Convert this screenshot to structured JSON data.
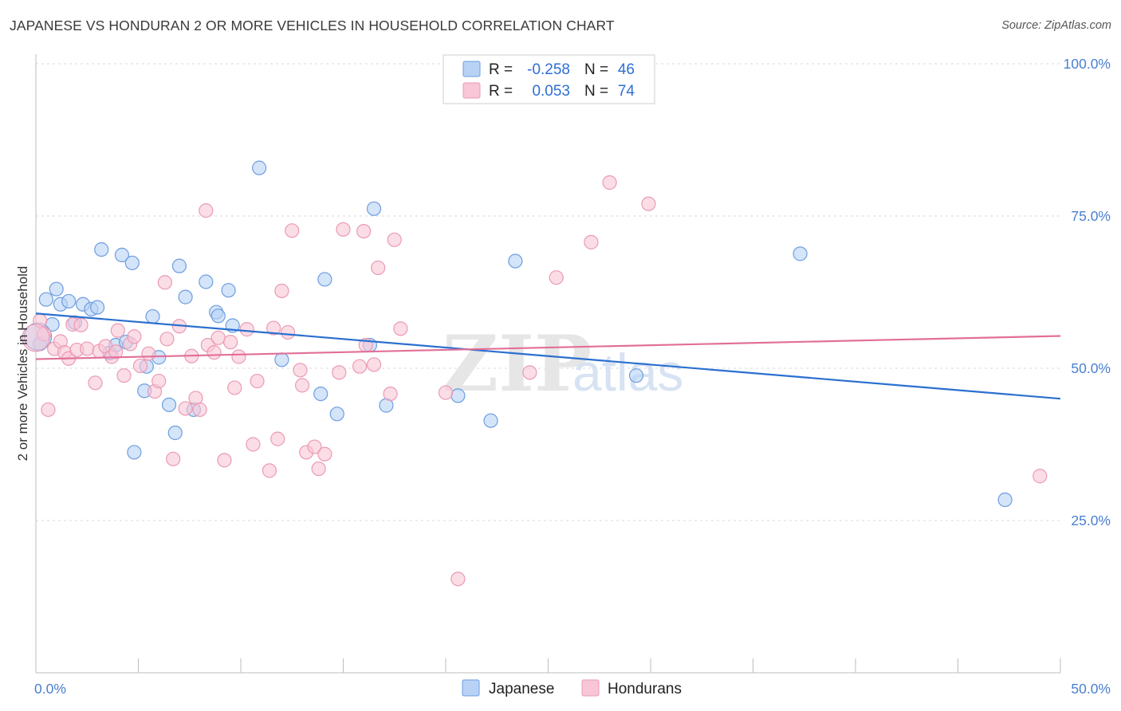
{
  "header": {
    "title": "JAPANESE VS HONDURAN 2 OR MORE VEHICLES IN HOUSEHOLD CORRELATION CHART",
    "source": "Source: ZipAtlas.com"
  },
  "legend_top": {
    "rows": [
      {
        "r_label": "R =",
        "r_value": "-0.258",
        "n_label": "N =",
        "n_value": "46"
      },
      {
        "r_label": "R =",
        "r_value": "0.053",
        "n_label": "N =",
        "n_value": "74"
      }
    ]
  },
  "legend_bottom": {
    "items": [
      {
        "label": "Japanese"
      },
      {
        "label": "Hondurans"
      }
    ]
  },
  "watermark": {
    "zip": "ZIP",
    "atlas": "atlas"
  },
  "colors": {
    "japanese_fill": "#b8d2f5",
    "japanese_stroke": "#6d9ee0",
    "japanese_line": "#2b6fd0",
    "hondurans_fill": "#f8c6d6",
    "hondurans_stroke": "#eb9ab4",
    "hondurans_line": "#e26f97",
    "axis_text": "#4a7fd0",
    "grid": "#d9d9d9"
  },
  "chart_data": {
    "type": "scatter",
    "title": "JAPANESE VS HONDURAN 2 OR MORE VEHICLES IN HOUSEHOLD CORRELATION CHART",
    "xlabel": "",
    "ylabel": "2 or more Vehicles in Household",
    "xlim": [
      0,
      50
    ],
    "ylim": [
      0,
      100
    ],
    "x_tick_labels": [
      "0.0%",
      "50.0%"
    ],
    "y_tick_labels": [
      "100.0%",
      "75.0%",
      "50.0%",
      "25.0%"
    ],
    "y_ticks": [
      100,
      75,
      50,
      25
    ],
    "grid": true,
    "legend_placement": "top-center",
    "series": [
      {
        "name": "Japanese",
        "R": -0.258,
        "N": 46,
        "trend": {
          "x": [
            0,
            50
          ],
          "y": [
            59.0,
            45.0
          ]
        },
        "points": [
          {
            "x": 0.2,
            "y": 54.0
          },
          {
            "x": 0.5,
            "y": 61.3
          },
          {
            "x": 0.8,
            "y": 57.2
          },
          {
            "x": 1.0,
            "y": 63.0
          },
          {
            "x": 1.2,
            "y": 60.5
          },
          {
            "x": 1.6,
            "y": 61.0
          },
          {
            "x": 1.9,
            "y": 57.5
          },
          {
            "x": 2.3,
            "y": 60.5
          },
          {
            "x": 2.7,
            "y": 59.7
          },
          {
            "x": 3.0,
            "y": 60.0
          },
          {
            "x": 3.2,
            "y": 69.5
          },
          {
            "x": 3.6,
            "y": 52.5
          },
          {
            "x": 3.9,
            "y": 53.8
          },
          {
            "x": 4.2,
            "y": 68.6
          },
          {
            "x": 4.4,
            "y": 54.3
          },
          {
            "x": 4.7,
            "y": 67.3
          },
          {
            "x": 4.8,
            "y": 36.2
          },
          {
            "x": 5.3,
            "y": 46.3
          },
          {
            "x": 5.4,
            "y": 50.3
          },
          {
            "x": 5.7,
            "y": 58.5
          },
          {
            "x": 6.0,
            "y": 51.8
          },
          {
            "x": 6.5,
            "y": 44.0
          },
          {
            "x": 6.8,
            "y": 39.4
          },
          {
            "x": 7.0,
            "y": 66.8
          },
          {
            "x": 7.3,
            "y": 61.7
          },
          {
            "x": 7.7,
            "y": 43.2
          },
          {
            "x": 8.3,
            "y": 64.2
          },
          {
            "x": 8.8,
            "y": 59.2
          },
          {
            "x": 8.9,
            "y": 58.6
          },
          {
            "x": 9.4,
            "y": 62.8
          },
          {
            "x": 9.6,
            "y": 57.0
          },
          {
            "x": 10.9,
            "y": 82.9
          },
          {
            "x": 12.0,
            "y": 51.4
          },
          {
            "x": 13.9,
            "y": 45.8
          },
          {
            "x": 14.1,
            "y": 64.6
          },
          {
            "x": 14.7,
            "y": 42.5
          },
          {
            "x": 16.3,
            "y": 53.8
          },
          {
            "x": 16.5,
            "y": 76.2
          },
          {
            "x": 17.1,
            "y": 43.9
          },
          {
            "x": 20.6,
            "y": 45.5
          },
          {
            "x": 22.2,
            "y": 41.4
          },
          {
            "x": 23.4,
            "y": 67.6
          },
          {
            "x": 29.3,
            "y": 48.8
          },
          {
            "x": 37.3,
            "y": 68.8
          },
          {
            "x": 47.3,
            "y": 28.4
          },
          {
            "x": 0.1,
            "y": 55.2
          }
        ]
      },
      {
        "name": "Hondurans",
        "R": 0.053,
        "N": 74,
        "trend": {
          "x": [
            0,
            50
          ],
          "y": [
            51.5,
            55.3
          ]
        },
        "points": [
          {
            "x": 0.2,
            "y": 57.8
          },
          {
            "x": 0.4,
            "y": 55.6
          },
          {
            "x": 0.6,
            "y": 43.2
          },
          {
            "x": 0.9,
            "y": 53.2
          },
          {
            "x": 1.2,
            "y": 54.4
          },
          {
            "x": 1.4,
            "y": 52.6
          },
          {
            "x": 1.6,
            "y": 51.6
          },
          {
            "x": 1.8,
            "y": 57.2
          },
          {
            "x": 2.0,
            "y": 53.0
          },
          {
            "x": 2.2,
            "y": 57.1
          },
          {
            "x": 2.5,
            "y": 53.2
          },
          {
            "x": 2.9,
            "y": 47.6
          },
          {
            "x": 3.1,
            "y": 52.8
          },
          {
            "x": 3.4,
            "y": 53.6
          },
          {
            "x": 3.7,
            "y": 51.9
          },
          {
            "x": 3.9,
            "y": 52.7
          },
          {
            "x": 4.0,
            "y": 56.2
          },
          {
            "x": 4.3,
            "y": 48.8
          },
          {
            "x": 4.6,
            "y": 54.0
          },
          {
            "x": 4.8,
            "y": 55.2
          },
          {
            "x": 5.1,
            "y": 50.4
          },
          {
            "x": 5.5,
            "y": 52.4
          },
          {
            "x": 5.8,
            "y": 46.2
          },
          {
            "x": 6.0,
            "y": 47.9
          },
          {
            "x": 6.3,
            "y": 64.1
          },
          {
            "x": 6.4,
            "y": 54.8
          },
          {
            "x": 6.7,
            "y": 35.1
          },
          {
            "x": 7.0,
            "y": 56.9
          },
          {
            "x": 7.3,
            "y": 43.4
          },
          {
            "x": 7.6,
            "y": 52.0
          },
          {
            "x": 7.8,
            "y": 45.1
          },
          {
            "x": 8.0,
            "y": 43.2
          },
          {
            "x": 8.3,
            "y": 75.9
          },
          {
            "x": 8.4,
            "y": 53.8
          },
          {
            "x": 8.7,
            "y": 52.6
          },
          {
            "x": 8.9,
            "y": 55.0
          },
          {
            "x": 9.2,
            "y": 34.9
          },
          {
            "x": 9.5,
            "y": 54.3
          },
          {
            "x": 9.7,
            "y": 46.8
          },
          {
            "x": 9.9,
            "y": 51.9
          },
          {
            "x": 10.3,
            "y": 56.4
          },
          {
            "x": 10.6,
            "y": 37.5
          },
          {
            "x": 10.8,
            "y": 47.9
          },
          {
            "x": 11.4,
            "y": 33.2
          },
          {
            "x": 11.6,
            "y": 56.6
          },
          {
            "x": 11.8,
            "y": 38.4
          },
          {
            "x": 12.0,
            "y": 62.7
          },
          {
            "x": 12.3,
            "y": 55.9
          },
          {
            "x": 12.5,
            "y": 72.6
          },
          {
            "x": 12.9,
            "y": 49.7
          },
          {
            "x": 13.0,
            "y": 47.2
          },
          {
            "x": 13.2,
            "y": 36.2
          },
          {
            "x": 13.6,
            "y": 37.1
          },
          {
            "x": 13.8,
            "y": 33.5
          },
          {
            "x": 14.1,
            "y": 35.9
          },
          {
            "x": 14.8,
            "y": 49.3
          },
          {
            "x": 15.0,
            "y": 72.8
          },
          {
            "x": 15.8,
            "y": 50.3
          },
          {
            "x": 16.0,
            "y": 72.5
          },
          {
            "x": 16.1,
            "y": 53.8
          },
          {
            "x": 16.5,
            "y": 50.6
          },
          {
            "x": 16.7,
            "y": 66.5
          },
          {
            "x": 17.3,
            "y": 45.8
          },
          {
            "x": 17.5,
            "y": 71.1
          },
          {
            "x": 17.8,
            "y": 56.5
          },
          {
            "x": 20.0,
            "y": 46.0
          },
          {
            "x": 20.6,
            "y": 15.4
          },
          {
            "x": 24.1,
            "y": 49.3
          },
          {
            "x": 25.4,
            "y": 64.9
          },
          {
            "x": 27.1,
            "y": 70.7
          },
          {
            "x": 28.0,
            "y": 80.5
          },
          {
            "x": 29.9,
            "y": 77.0
          },
          {
            "x": 49.0,
            "y": 32.3
          },
          {
            "x": 0.0,
            "y": 55.0
          }
        ]
      }
    ]
  }
}
